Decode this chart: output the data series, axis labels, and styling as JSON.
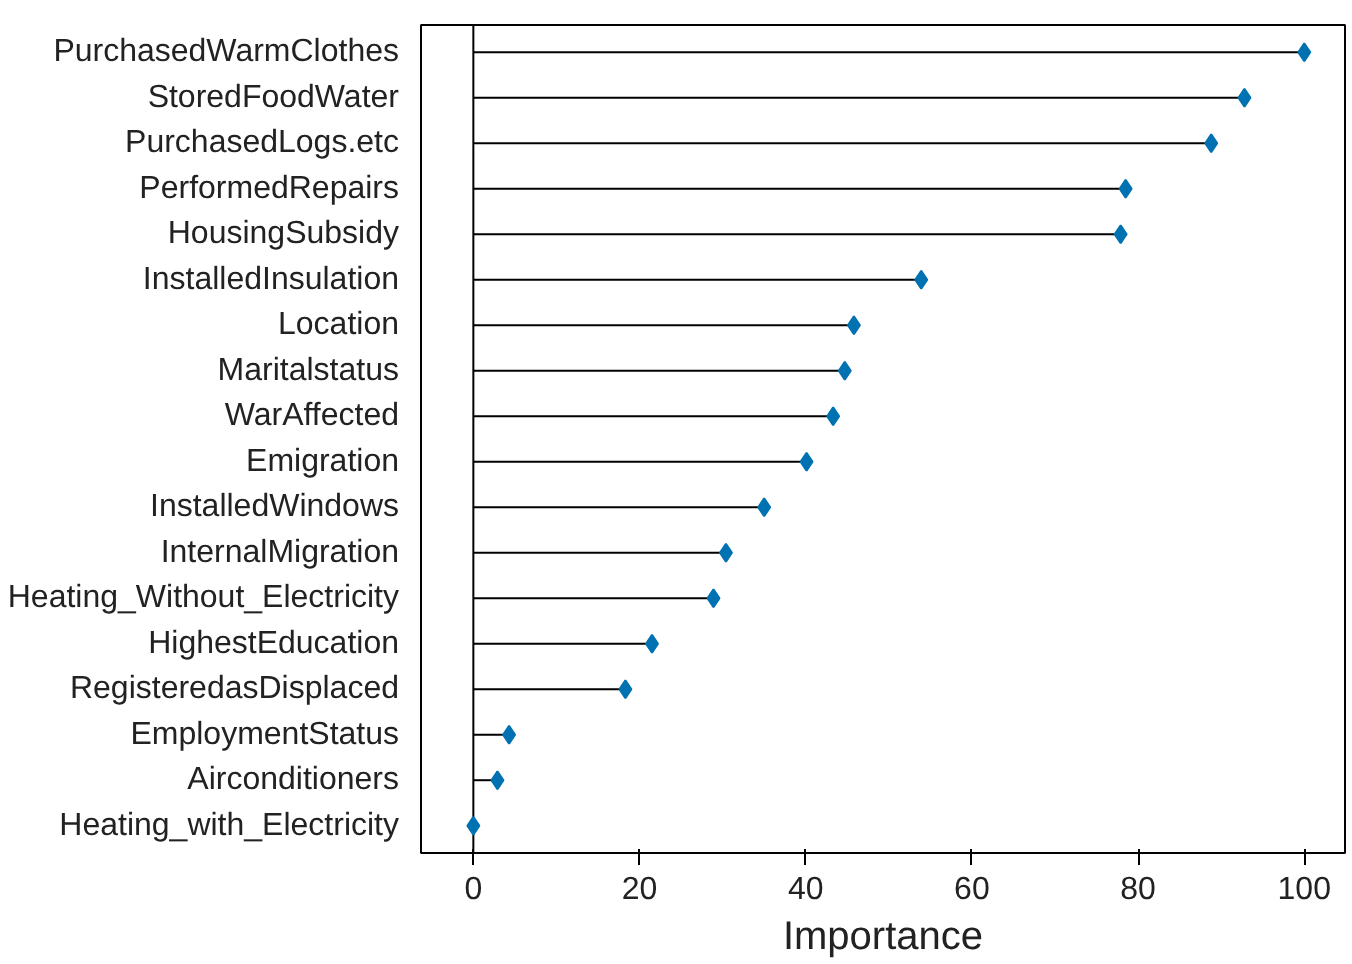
{
  "chart_data": {
    "type": "lollipop",
    "orientation": "horizontal",
    "xlabel": "Importance",
    "categories": [
      "PurchasedWarmClothes",
      "StoredFoodWater",
      "PurchasedLogs.etc",
      "PerformedRepairs",
      "HousingSubsidy",
      "InstalledInsulation",
      "Location",
      "Maritalstatus",
      "WarAffected",
      "Emigration",
      "InstalledWindows",
      "InternalMigration",
      "Heating_Without_Electricity",
      "HighestEducation",
      "RegisteredasDisplaced",
      "EmploymentStatus",
      "Airconditioners",
      "Heating_with_Electricity"
    ],
    "values": [
      100,
      92.8,
      88.8,
      78.5,
      77.9,
      53.9,
      45.8,
      44.7,
      43.3,
      40.1,
      35,
      30.4,
      28.9,
      21.5,
      18.3,
      4.3,
      2.9,
      0
    ],
    "color": "#0072b2",
    "marker": "diamond",
    "grid": false,
    "xlim": [
      -6.3,
      104.9
    ],
    "xticks": [
      0,
      20,
      40,
      60,
      80,
      100
    ],
    "ref_lines": [
      {
        "axis": "x",
        "value": 0,
        "color": "#000000"
      }
    ]
  }
}
